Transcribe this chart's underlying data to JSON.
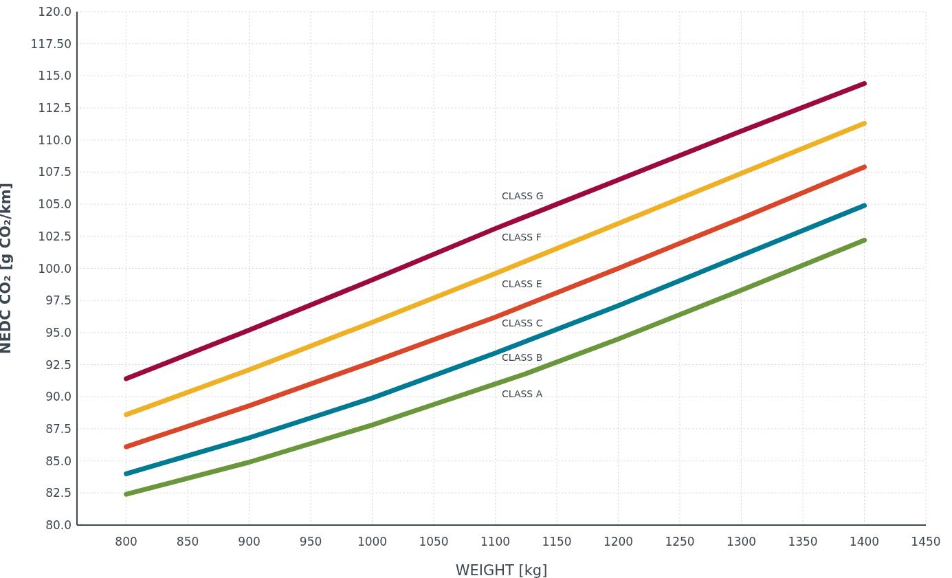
{
  "chart_data": {
    "type": "line",
    "xlabel": "WEIGHT [kg]",
    "ylabel": "NEDC CO₂ [g CO₂/km]",
    "xlim": [
      760,
      1450
    ],
    "xticks": [
      800,
      850,
      900,
      950,
      1000,
      1050,
      1100,
      1150,
      1200,
      1250,
      1300,
      1350,
      1400,
      1450
    ],
    "ylim": [
      80,
      120
    ],
    "yticks": [
      {
        "value": 80,
        "label": "80.0"
      },
      {
        "value": 82.5,
        "label": "82.5"
      },
      {
        "value": 85,
        "label": "85.0"
      },
      {
        "value": 87.5,
        "label": "87.5"
      },
      {
        "value": 90,
        "label": "90.0"
      },
      {
        "value": 92.5,
        "label": "92.5"
      },
      {
        "value": 95,
        "label": "95.0"
      },
      {
        "value": 97.5,
        "label": "97.5"
      },
      {
        "value": 100,
        "label": "100.0"
      },
      {
        "value": 102.5,
        "label": "102.5"
      },
      {
        "value": 105,
        "label": "105.0"
      },
      {
        "value": 107.5,
        "label": "107.5"
      },
      {
        "value": 110,
        "label": "110.0"
      },
      {
        "value": 112.5,
        "label": "112.5"
      },
      {
        "value": 115,
        "label": "115.0"
      },
      {
        "value": 117.5,
        "label": "117.50"
      },
      {
        "value": 120,
        "label": "120.0"
      }
    ],
    "grid": true,
    "legend": false,
    "marker": "none",
    "line_style": "solid",
    "series": [
      {
        "color": "#9b0a3e",
        "x": [
          800,
          900,
          1000,
          1100,
          1150,
          1200,
          1300,
          1400
        ],
        "values": [
          91.4,
          95.2,
          99.1,
          103.1,
          105.0,
          106.9,
          110.7,
          114.4
        ]
      },
      {
        "color": "#eeb024",
        "x": [
          800,
          900,
          1000,
          1100,
          1200,
          1300,
          1400
        ],
        "values": [
          88.6,
          92.1,
          95.8,
          99.6,
          103.5,
          107.4,
          111.3
        ]
      },
      {
        "color": "#d9472b",
        "x": [
          800,
          900,
          1000,
          1100,
          1200,
          1300,
          1400
        ],
        "values": [
          86.1,
          89.3,
          92.7,
          96.2,
          100.0,
          103.9,
          107.9
        ]
      },
      {
        "color": "#007b93",
        "x": [
          800,
          900,
          1000,
          1100,
          1200,
          1300,
          1400
        ],
        "values": [
          84.0,
          86.8,
          89.9,
          93.4,
          97.1,
          101.0,
          104.9
        ]
      },
      {
        "color": "#6a973b",
        "x": [
          800,
          900,
          1000,
          1050,
          1100,
          1125,
          1200,
          1300,
          1400
        ],
        "values": [
          82.4,
          84.9,
          87.8,
          89.4,
          91.0,
          91.8,
          94.5,
          98.3,
          102.2
        ]
      }
    ],
    "annotations": [
      "CLASS G",
      "CLASS F",
      "CLASS E",
      "CLASS C",
      "CLASS B",
      "CLASS A"
    ]
  }
}
